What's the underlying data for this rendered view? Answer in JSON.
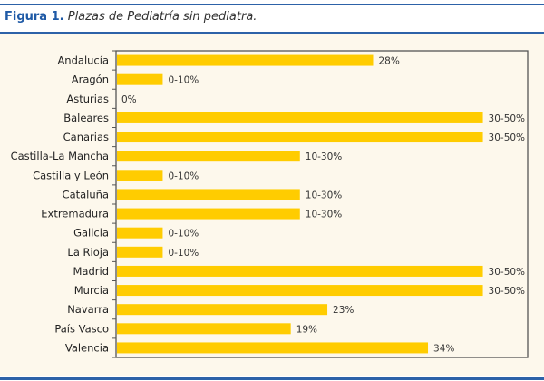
{
  "figure": {
    "number": "Figura 1.",
    "title": "Plazas de Pediatría sin pediatra."
  },
  "colors": {
    "bar": "#ffcc00",
    "rule": "#2d62a8",
    "background": "#fdf8ec"
  },
  "chart_data": {
    "type": "bar",
    "orientation": "horizontal",
    "title": "Plazas de Pediatría sin pediatra.",
    "xlim": [
      0,
      45
    ],
    "grid": false,
    "categories": [
      "Andalucía",
      "Aragón",
      "Asturias",
      "Baleares",
      "Canarias",
      "Castilla-La Mancha",
      "Castilla y León",
      "Cataluña",
      "Extremadura",
      "Galicia",
      "La Rioja",
      "Madrid",
      "Murcia",
      "Navarra",
      "País Vasco",
      "Valencia"
    ],
    "values": [
      28,
      5,
      0,
      40,
      40,
      20,
      5,
      20,
      20,
      5,
      5,
      40,
      40,
      23,
      19,
      34
    ],
    "data_labels": [
      "28%",
      "0-10%",
      "0%",
      "30-50%",
      "30-50%",
      "10-30%",
      "0-10%",
      "10-30%",
      "10-30%",
      "0-10%",
      "0-10%",
      "30-50%",
      "30-50%",
      "23%",
      "19%",
      "34%"
    ]
  }
}
